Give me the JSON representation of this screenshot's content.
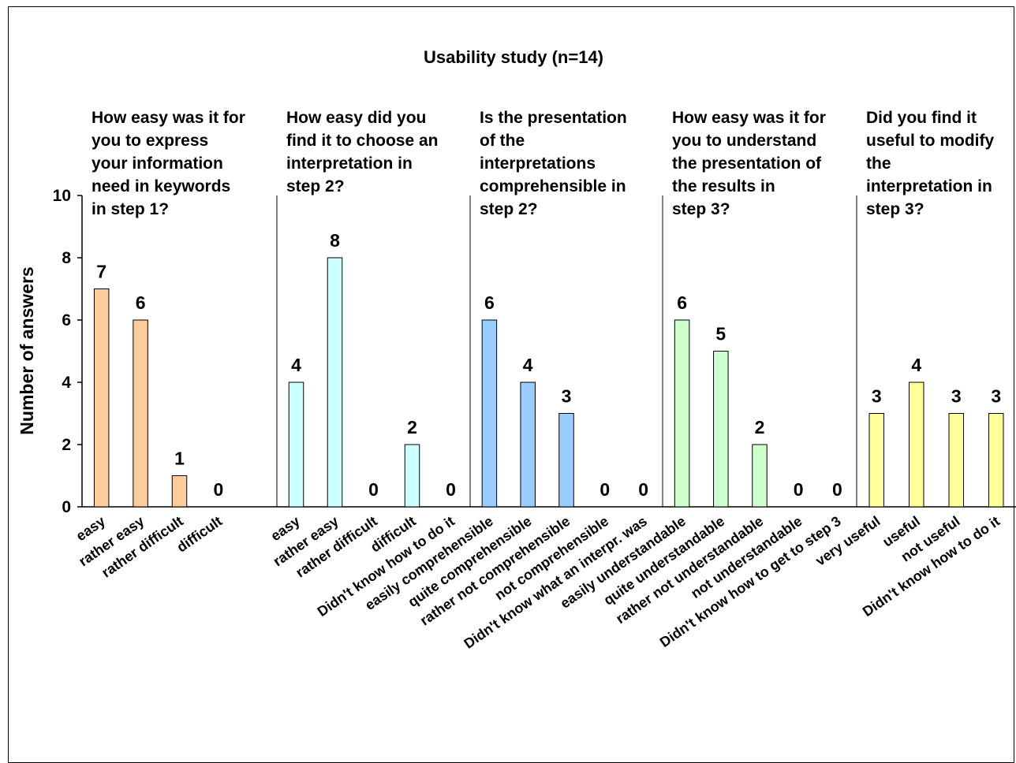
{
  "chart_data": {
    "type": "bar",
    "title": "Usability study (n=14)",
    "ylabel": "Number of answers",
    "xlabel": "",
    "ylim": [
      0,
      10
    ],
    "yticks": [
      0,
      2,
      4,
      6,
      8,
      10
    ],
    "grid": false,
    "groups": [
      {
        "question": [
          "How easy was it for",
          "you to express",
          "your information",
          "need in keywords",
          "in step 1?"
        ],
        "color": "#FCCC9C",
        "categories": [
          "easy",
          "rather easy",
          "rather difficult",
          "difficult"
        ],
        "values": [
          7,
          6,
          1,
          0
        ]
      },
      {
        "question": [
          "How easy did you",
          "find it to choose an",
          "interpretation in",
          "step 2?"
        ],
        "color": "#CCFFFF",
        "categories": [
          "easy",
          "rather easy",
          "rather difficult",
          "difficult",
          "Didn't know how to do it"
        ],
        "values": [
          4,
          8,
          0,
          2,
          0
        ]
      },
      {
        "question": [
          "Is the presentation",
          "of the",
          "interpretations",
          "comprehensible in",
          "step 2?"
        ],
        "color": "#99CCFF",
        "categories": [
          "easily comprehensible",
          "quite comprehensible",
          "rather not comprehensible",
          "not comprehensible",
          "Didn't know what an interpr. was"
        ],
        "values": [
          6,
          4,
          3,
          0,
          0
        ]
      },
      {
        "question": [
          "How easy was it for",
          "you to understand",
          "the presentation of",
          "the results in",
          "step 3?"
        ],
        "color": "#CCFFCC",
        "categories": [
          "easily understandable",
          "quite understandable",
          "rather not understandable",
          "not understandable",
          "Didn't know how to get to step 3"
        ],
        "values": [
          6,
          5,
          2,
          0,
          0
        ]
      },
      {
        "question": [
          "Did you find it",
          "useful to modify",
          "the",
          "interpretation in",
          "step 3?"
        ],
        "color": "#FFFF99",
        "categories": [
          "very useful",
          "useful",
          "not useful",
          "Didn't know how to do it"
        ],
        "values": [
          3,
          4,
          3,
          3
        ]
      }
    ]
  }
}
